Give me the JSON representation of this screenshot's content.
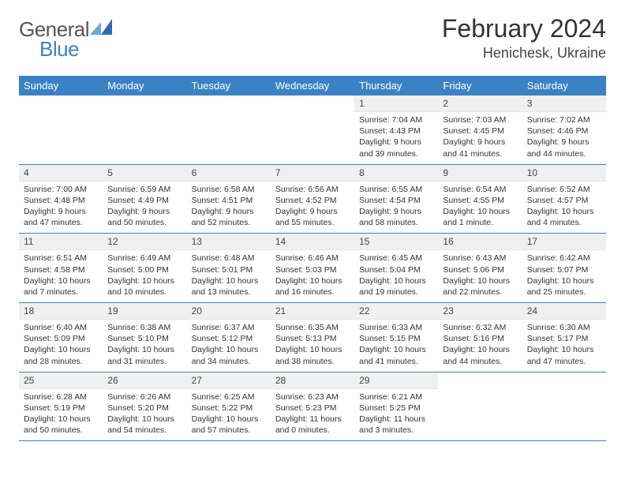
{
  "logo": {
    "text1": "General",
    "text2": "Blue",
    "accent": "#3b82c4"
  },
  "title": "February 2024",
  "subtitle": "Henichesk, Ukraine",
  "colors": {
    "header_bg": "#3b82c4",
    "header_text": "#ffffff",
    "daynum_bg": "#f0f0f0",
    "border": "#3b82c4",
    "text": "#333333"
  },
  "headers": [
    "Sunday",
    "Monday",
    "Tuesday",
    "Wednesday",
    "Thursday",
    "Friday",
    "Saturday"
  ],
  "weeks": [
    [
      null,
      null,
      null,
      null,
      {
        "n": "1",
        "sr": "7:04 AM",
        "ss": "4:43 PM",
        "dl": "9 hours and 39 minutes."
      },
      {
        "n": "2",
        "sr": "7:03 AM",
        "ss": "4:45 PM",
        "dl": "9 hours and 41 minutes."
      },
      {
        "n": "3",
        "sr": "7:02 AM",
        "ss": "4:46 PM",
        "dl": "9 hours and 44 minutes."
      }
    ],
    [
      {
        "n": "4",
        "sr": "7:00 AM",
        "ss": "4:48 PM",
        "dl": "9 hours and 47 minutes."
      },
      {
        "n": "5",
        "sr": "6:59 AM",
        "ss": "4:49 PM",
        "dl": "9 hours and 50 minutes."
      },
      {
        "n": "6",
        "sr": "6:58 AM",
        "ss": "4:51 PM",
        "dl": "9 hours and 52 minutes."
      },
      {
        "n": "7",
        "sr": "6:56 AM",
        "ss": "4:52 PM",
        "dl": "9 hours and 55 minutes."
      },
      {
        "n": "8",
        "sr": "6:55 AM",
        "ss": "4:54 PM",
        "dl": "9 hours and 58 minutes."
      },
      {
        "n": "9",
        "sr": "6:54 AM",
        "ss": "4:55 PM",
        "dl": "10 hours and 1 minute."
      },
      {
        "n": "10",
        "sr": "6:52 AM",
        "ss": "4:57 PM",
        "dl": "10 hours and 4 minutes."
      }
    ],
    [
      {
        "n": "11",
        "sr": "6:51 AM",
        "ss": "4:58 PM",
        "dl": "10 hours and 7 minutes."
      },
      {
        "n": "12",
        "sr": "6:49 AM",
        "ss": "5:00 PM",
        "dl": "10 hours and 10 minutes."
      },
      {
        "n": "13",
        "sr": "6:48 AM",
        "ss": "5:01 PM",
        "dl": "10 hours and 13 minutes."
      },
      {
        "n": "14",
        "sr": "6:46 AM",
        "ss": "5:03 PM",
        "dl": "10 hours and 16 minutes."
      },
      {
        "n": "15",
        "sr": "6:45 AM",
        "ss": "5:04 PM",
        "dl": "10 hours and 19 minutes."
      },
      {
        "n": "16",
        "sr": "6:43 AM",
        "ss": "5:06 PM",
        "dl": "10 hours and 22 minutes."
      },
      {
        "n": "17",
        "sr": "6:42 AM",
        "ss": "5:07 PM",
        "dl": "10 hours and 25 minutes."
      }
    ],
    [
      {
        "n": "18",
        "sr": "6:40 AM",
        "ss": "5:09 PM",
        "dl": "10 hours and 28 minutes."
      },
      {
        "n": "19",
        "sr": "6:38 AM",
        "ss": "5:10 PM",
        "dl": "10 hours and 31 minutes."
      },
      {
        "n": "20",
        "sr": "6:37 AM",
        "ss": "5:12 PM",
        "dl": "10 hours and 34 minutes."
      },
      {
        "n": "21",
        "sr": "6:35 AM",
        "ss": "5:13 PM",
        "dl": "10 hours and 38 minutes."
      },
      {
        "n": "22",
        "sr": "6:33 AM",
        "ss": "5:15 PM",
        "dl": "10 hours and 41 minutes."
      },
      {
        "n": "23",
        "sr": "6:32 AM",
        "ss": "5:16 PM",
        "dl": "10 hours and 44 minutes."
      },
      {
        "n": "24",
        "sr": "6:30 AM",
        "ss": "5:17 PM",
        "dl": "10 hours and 47 minutes."
      }
    ],
    [
      {
        "n": "25",
        "sr": "6:28 AM",
        "ss": "5:19 PM",
        "dl": "10 hours and 50 minutes."
      },
      {
        "n": "26",
        "sr": "6:26 AM",
        "ss": "5:20 PM",
        "dl": "10 hours and 54 minutes."
      },
      {
        "n": "27",
        "sr": "6:25 AM",
        "ss": "5:22 PM",
        "dl": "10 hours and 57 minutes."
      },
      {
        "n": "28",
        "sr": "6:23 AM",
        "ss": "5:23 PM",
        "dl": "11 hours and 0 minutes."
      },
      {
        "n": "29",
        "sr": "6:21 AM",
        "ss": "5:25 PM",
        "dl": "11 hours and 3 minutes."
      },
      null,
      null
    ]
  ],
  "labels": {
    "sunrise": "Sunrise:",
    "sunset": "Sunset:",
    "daylight": "Daylight:"
  }
}
